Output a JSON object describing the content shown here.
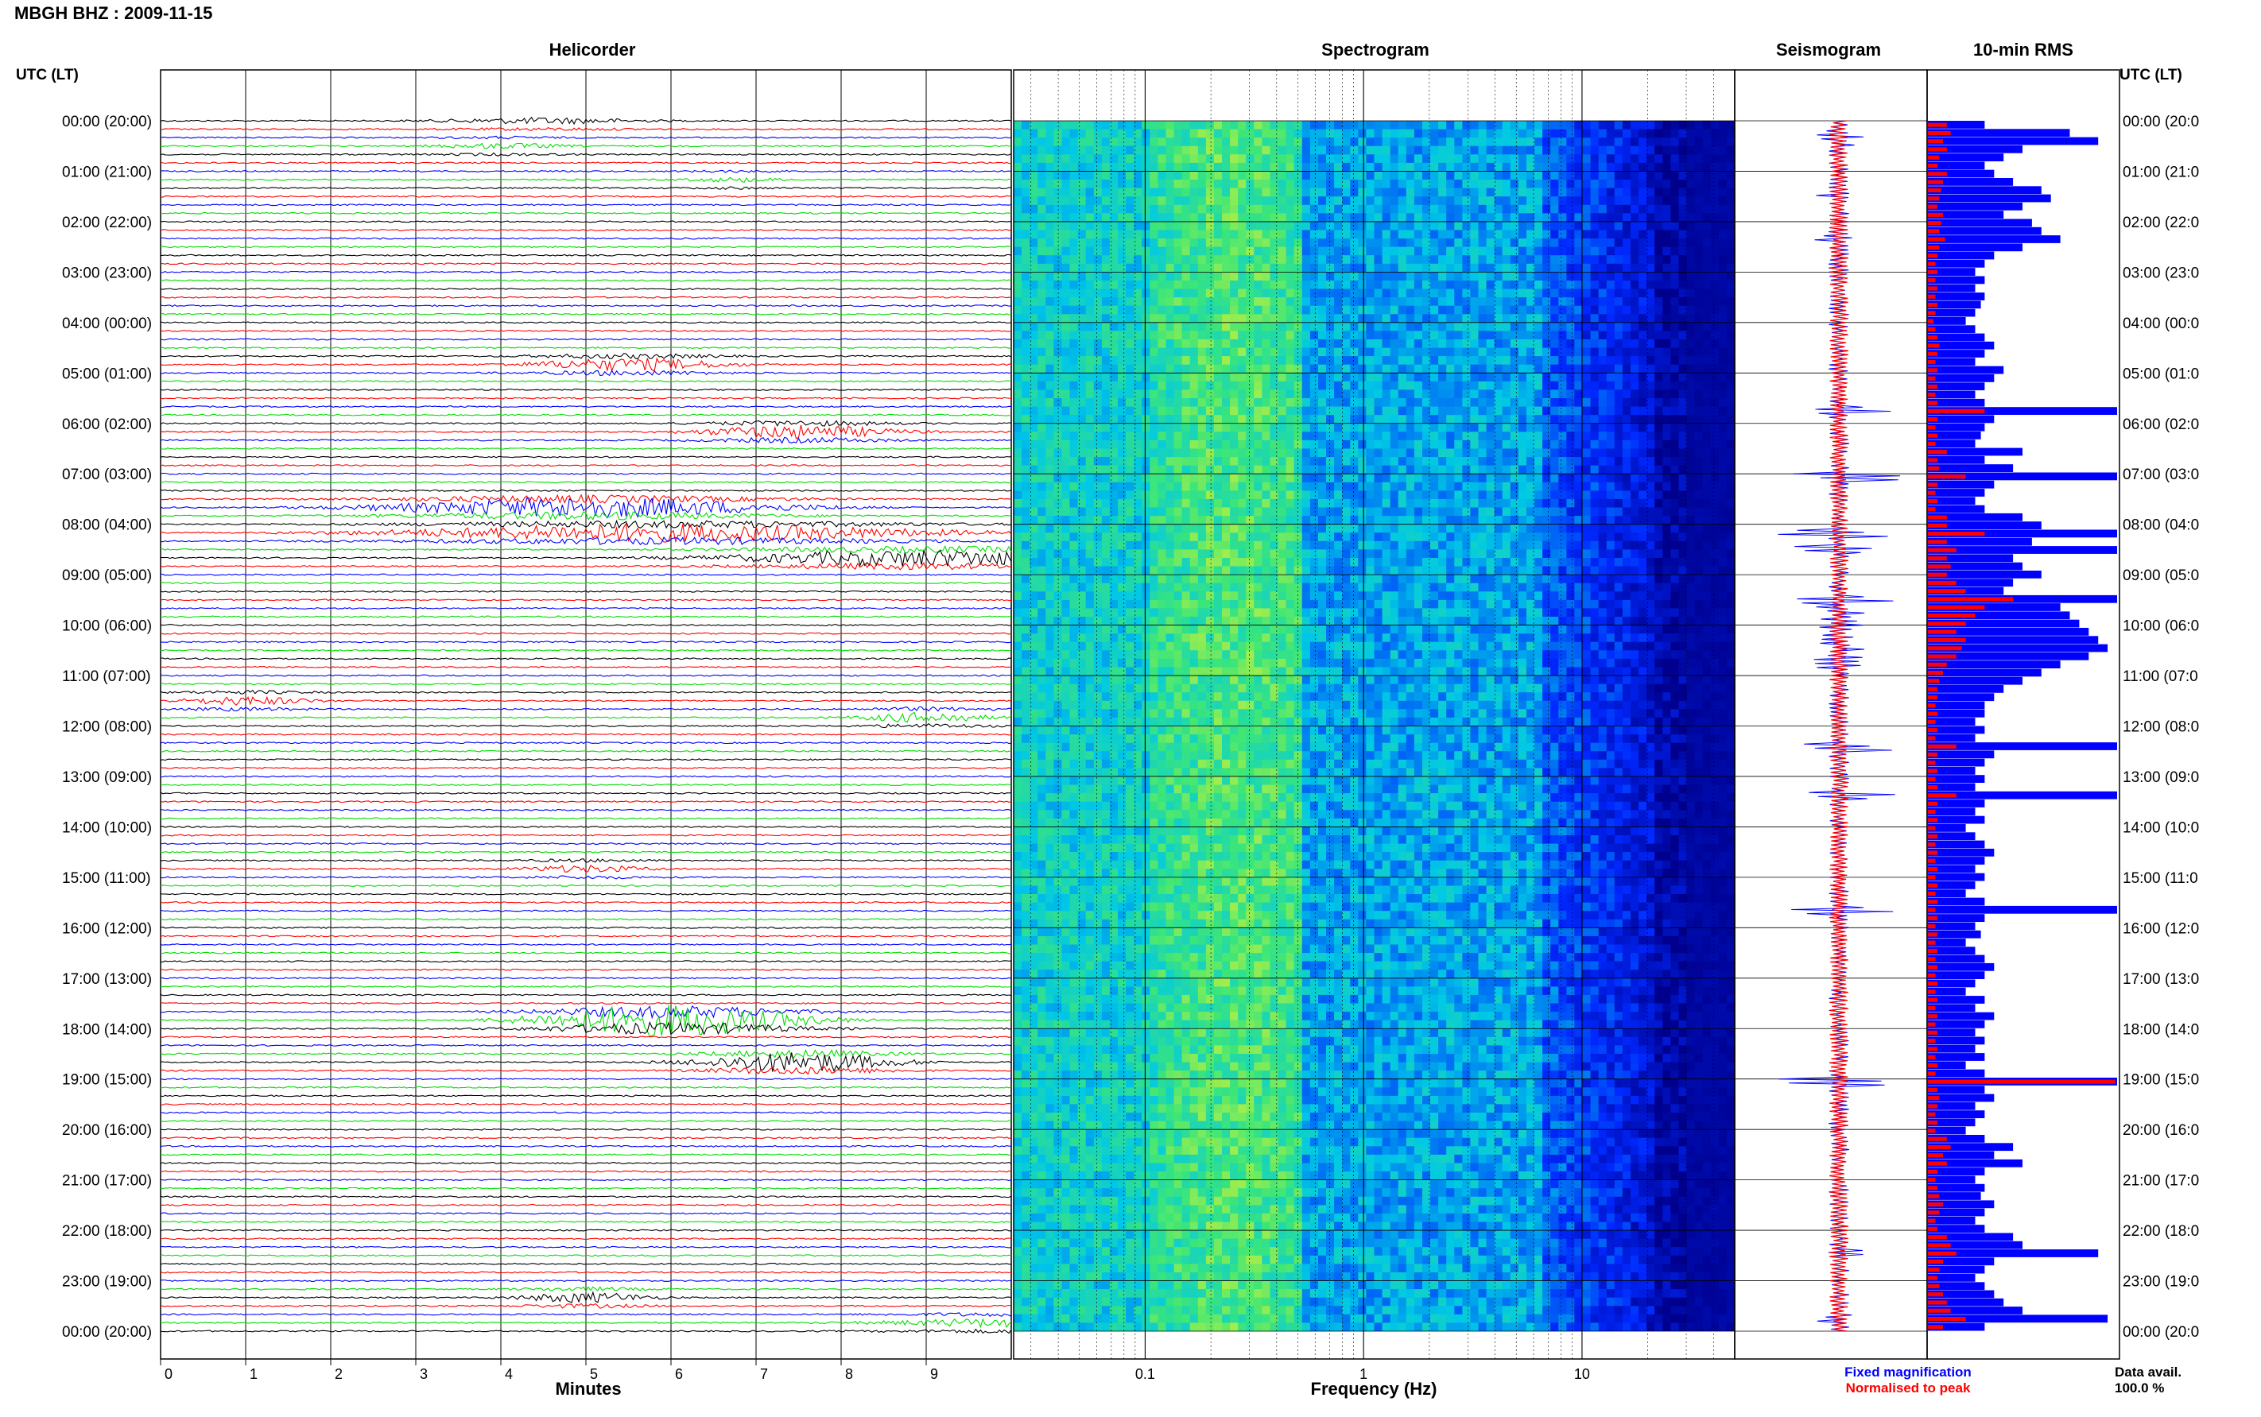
{
  "title": "MBGH BHZ : 2009-11-15",
  "panels": {
    "helicorder": "Helicorder",
    "spectrogram": "Spectrogram",
    "seismogram": "Seismogram",
    "rms": "10-min RMS"
  },
  "axis_header_left": "UTC (LT)",
  "axis_header_right": "UTC (LT)",
  "time_labels": [
    "00:00 (20:00)",
    "01:00 (21:00)",
    "02:00 (22:00)",
    "03:00 (23:00)",
    "04:00 (00:00)",
    "05:00 (01:00)",
    "06:00 (02:00)",
    "07:00 (03:00)",
    "08:00 (04:00)",
    "09:00 (05:00)",
    "10:00 (06:00)",
    "11:00 (07:00)",
    "12:00 (08:00)",
    "13:00 (09:00)",
    "14:00 (10:00)",
    "15:00 (11:00)",
    "16:00 (12:00)",
    "17:00 (13:00)",
    "18:00 (14:00)",
    "19:00 (15:00)",
    "20:00 (16:00)",
    "21:00 (17:00)",
    "22:00 (18:00)",
    "23:00 (19:00)",
    "00:00 (20:00)"
  ],
  "time_labels_right": [
    "00:00 (20:0",
    "01:00 (21:0",
    "02:00 (22:0",
    "03:00 (23:0",
    "04:00 (00:0",
    "05:00 (01:0",
    "06:00 (02:0",
    "07:00 (03:0",
    "08:00 (04:0",
    "09:00 (05:0",
    "10:00 (06:0",
    "11:00 (07:0",
    "12:00 (08:0",
    "13:00 (09:0",
    "14:00 (10:0",
    "15:00 (11:0",
    "16:00 (12:0",
    "17:00 (13:0",
    "18:00 (14:0",
    "19:00 (15:0",
    "20:00 (16:0",
    "21:00 (17:0",
    "22:00 (18:0",
    "23:00 (19:0",
    "00:00 (20:0"
  ],
  "minutes_ticks": [
    "0",
    "1",
    "2",
    "3",
    "4",
    "5",
    "6",
    "7",
    "8",
    "9"
  ],
  "minutes_label": "Minutes",
  "freq_ticks": [
    "0.1",
    "1",
    "10"
  ],
  "freq_label": "Frequency (Hz)",
  "legend": {
    "fixed": "Fixed magnification",
    "normalised": "Normalised to peak"
  },
  "data_avail_label": "Data avail.",
  "data_avail_value": "100.0 %",
  "colors": {
    "trace_cycle": [
      "#000000",
      "#ff0000",
      "#0000ff",
      "#00dd00"
    ],
    "rms_fixed": "#0000ff",
    "rms_normalised": "#ff0000"
  },
  "chart_data": [
    {
      "type": "line",
      "name": "Helicorder",
      "xlabel": "Minutes",
      "xlim": [
        0,
        10
      ],
      "rows_per_hour": 6,
      "events": [
        {
          "start_hour": 0.05,
          "duration_min": 3,
          "amp": 0.7
        },
        {
          "start_hour": 0.55,
          "duration_min": 2,
          "amp": 0.6
        },
        {
          "start_hour": 1.1,
          "duration_min": 1.5,
          "amp": 0.5
        },
        {
          "start_hour": 4.9,
          "duration_min": 3,
          "amp": 1.5
        },
        {
          "start_hour": 6.1,
          "duration_min": 3,
          "amp": 1.6
        },
        {
          "start_hour": 7.7,
          "duration_min": 6,
          "amp": 2.5
        },
        {
          "start_hour": 8.2,
          "duration_min": 8,
          "amp": 2.2
        },
        {
          "start_hour": 8.6,
          "duration_min": 6,
          "amp": 2.0
        },
        {
          "start_hour": 11.5,
          "duration_min": 2,
          "amp": 1.0
        },
        {
          "start_hour": 11.8,
          "duration_min": 2,
          "amp": 1.2
        },
        {
          "start_hour": 14.9,
          "duration_min": 2,
          "amp": 0.8
        },
        {
          "start_hour": 17.9,
          "duration_min": 4,
          "amp": 4.0
        },
        {
          "start_hour": 18.6,
          "duration_min": 3,
          "amp": 2.5
        },
        {
          "start_hour": 23.4,
          "duration_min": 2,
          "amp": 1.2
        },
        {
          "start_hour": 23.8,
          "duration_min": 4,
          "amp": 1.0
        }
      ]
    },
    {
      "type": "heatmap",
      "name": "Spectrogram",
      "xlabel": "Frequency (Hz)",
      "x_scale": "log",
      "xlim": [
        0.025,
        50
      ],
      "ylim_hours": [
        0,
        24
      ]
    },
    {
      "type": "line",
      "name": "Seismogram",
      "series": [
        {
          "name": "Fixed magnification",
          "color": "#0000ff"
        },
        {
          "name": "Normalised to peak",
          "color": "#ff0000"
        }
      ]
    },
    {
      "type": "bar",
      "name": "10-min RMS",
      "orientation": "horizontal",
      "bins_per_hour": 6,
      "series": [
        {
          "name": "Fixed magnification",
          "values": [
            0.3,
            0.75,
            0.9,
            0.5,
            0.4,
            0.3,
            0.35,
            0.45,
            0.6,
            0.65,
            0.5,
            0.4,
            0.55,
            0.6,
            0.7,
            0.5,
            0.35,
            0.3,
            0.25,
            0.3,
            0.25,
            0.3,
            0.28,
            0.25,
            0.2,
            0.25,
            0.3,
            0.35,
            0.3,
            0.25,
            0.4,
            0.35,
            0.3,
            0.25,
            0.3,
            1.0,
            0.35,
            0.3,
            0.28,
            0.25,
            0.5,
            0.3,
            0.45,
            1.0,
            0.35,
            0.3,
            0.25,
            0.3,
            0.5,
            0.6,
            1.0,
            0.55,
            1.0,
            0.45,
            0.5,
            0.6,
            0.45,
            0.4,
            1.0,
            0.7,
            0.75,
            0.8,
            0.85,
            0.9,
            0.95,
            0.85,
            0.7,
            0.6,
            0.5,
            0.4,
            0.35,
            0.3,
            0.3,
            0.25,
            0.3,
            0.25,
            1.0,
            0.35,
            0.3,
            0.25,
            0.3,
            0.25,
            1.0,
            0.3,
            0.25,
            0.3,
            0.2,
            0.25,
            0.3,
            0.35,
            0.3,
            0.25,
            0.3,
            0.25,
            0.2,
            0.3,
            1.0,
            0.3,
            0.25,
            0.28,
            0.2,
            0.25,
            0.3,
            0.35,
            0.3,
            0.25,
            0.2,
            0.3,
            0.25,
            0.35,
            0.3,
            0.25,
            0.3,
            0.25,
            0.3,
            0.2,
            0.3,
            1.0,
            0.3,
            0.35,
            0.25,
            0.3,
            0.25,
            0.2,
            0.3,
            0.45,
            0.35,
            0.5,
            0.3,
            0.25,
            0.3,
            0.28,
            0.35,
            0.3,
            0.25,
            0.3,
            0.45,
            0.5,
            0.9,
            0.35,
            0.3,
            0.25,
            0.3,
            0.35,
            0.4,
            0.5,
            0.95,
            0.3
          ]
        },
        {
          "name": "Normalised to peak",
          "values": [
            0.1,
            0.12,
            0.08,
            0.1,
            0.06,
            0.05,
            0.1,
            0.08,
            0.07,
            0.06,
            0.05,
            0.08,
            0.07,
            0.06,
            0.09,
            0.06,
            0.05,
            0.04,
            0.05,
            0.04,
            0.05,
            0.04,
            0.05,
            0.04,
            0.03,
            0.04,
            0.05,
            0.06,
            0.05,
            0.04,
            0.05,
            0.04,
            0.05,
            0.04,
            0.05,
            0.3,
            0.05,
            0.04,
            0.05,
            0.04,
            0.1,
            0.05,
            0.06,
            0.2,
            0.05,
            0.04,
            0.05,
            0.04,
            0.1,
            0.1,
            0.3,
            0.1,
            0.15,
            0.1,
            0.12,
            0.1,
            0.15,
            0.2,
            0.45,
            0.3,
            0.25,
            0.2,
            0.15,
            0.2,
            0.18,
            0.15,
            0.1,
            0.08,
            0.06,
            0.05,
            0.05,
            0.04,
            0.05,
            0.04,
            0.05,
            0.04,
            0.15,
            0.05,
            0.04,
            0.05,
            0.04,
            0.05,
            0.15,
            0.05,
            0.04,
            0.05,
            0.04,
            0.05,
            0.04,
            0.05,
            0.04,
            0.05,
            0.04,
            0.05,
            0.04,
            0.05,
            0.04,
            0.05,
            0.04,
            0.05,
            0.04,
            0.05,
            0.04,
            0.05,
            0.04,
            0.05,
            0.04,
            0.05,
            0.04,
            0.05,
            0.04,
            0.05,
            0.04,
            0.05,
            0.04,
            0.05,
            0.04,
            0.99,
            0.05,
            0.06,
            0.05,
            0.04,
            0.05,
            0.04,
            0.1,
            0.12,
            0.08,
            0.1,
            0.05,
            0.04,
            0.05,
            0.06,
            0.08,
            0.06,
            0.04,
            0.05,
            0.1,
            0.12,
            0.15,
            0.08,
            0.06,
            0.05,
            0.06,
            0.08,
            0.1,
            0.12,
            0.2,
            0.08
          ]
        }
      ]
    }
  ]
}
